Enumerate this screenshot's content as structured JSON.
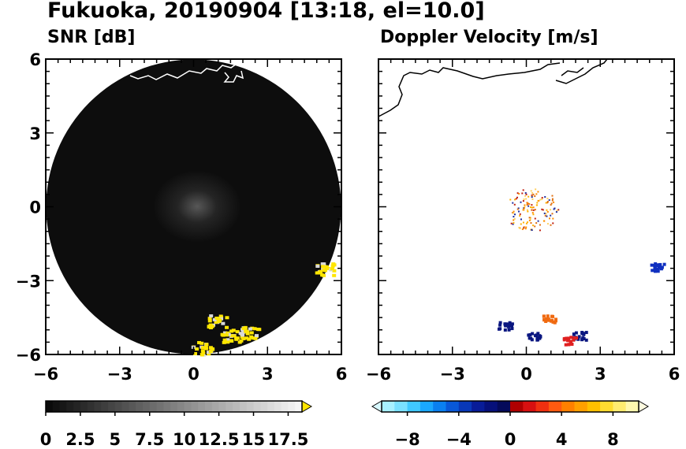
{
  "title": "Fukuoka, 20190904 [13:18, el=10.0]",
  "colors": {
    "snr_background": "#0d0d0d",
    "echo_yellow": "#ffe600",
    "coastline_snr": "#ffffff",
    "coastline_doppler": "#000000",
    "doppler_negative": "#0a1a9a",
    "doppler_positive": "#e8401a"
  },
  "chart_data": [
    {
      "type": "heatmap",
      "title": "SNR [dB]",
      "xlim": [
        -6,
        6
      ],
      "ylim": [
        -6,
        6
      ],
      "xticks": [
        "−6",
        "−3",
        "0",
        "3",
        "6"
      ],
      "yticks": [
        "6",
        "3",
        "0",
        "−3",
        "−6"
      ],
      "colorbar": {
        "min": 0,
        "max": 18.5,
        "tick_labels": [
          "0",
          "2.5",
          "5",
          "7.5",
          "10",
          "12.5",
          "15",
          "17.5"
        ],
        "tick_values": [
          0,
          2.5,
          5,
          7.5,
          10,
          12.5,
          15,
          17.5
        ]
      },
      "echoes": [
        {
          "x": 0.9,
          "y": -4.6
        },
        {
          "x": 1.5,
          "y": -5.2
        },
        {
          "x": 2.3,
          "y": -5.1
        },
        {
          "x": 0.3,
          "y": -5.7
        },
        {
          "x": 5.3,
          "y": -2.5
        }
      ]
    },
    {
      "type": "heatmap",
      "title": "Doppler Velocity [m/s]",
      "xlim": [
        -6,
        6
      ],
      "ylim": [
        -6,
        6
      ],
      "xticks": [
        "−6",
        "−3",
        "0",
        "3",
        "6"
      ],
      "colorbar": {
        "min": -10,
        "max": 10,
        "tick_labels": [
          "−8",
          "−4",
          "0",
          "4",
          "8"
        ],
        "tick_values": [
          -8,
          -4,
          0,
          4,
          8
        ]
      },
      "echoes": [
        {
          "x": 0.9,
          "y": -4.5,
          "v": 5
        },
        {
          "x": 2.1,
          "y": -5.2,
          "v": -9
        },
        {
          "x": 1.7,
          "y": -5.4,
          "v": 7
        },
        {
          "x": 0.3,
          "y": -5.2,
          "v": -9
        },
        {
          "x": -0.9,
          "y": -4.8,
          "v": -8
        },
        {
          "x": 5.3,
          "y": -2.4,
          "v": -7
        }
      ]
    }
  ]
}
